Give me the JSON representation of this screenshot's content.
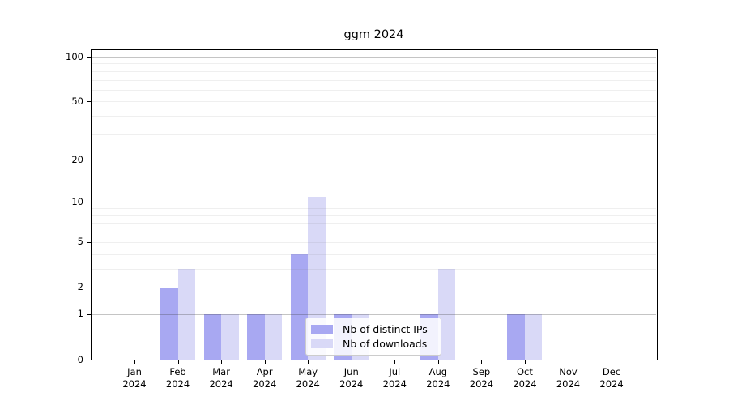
{
  "title": "ggm 2024",
  "chart_data": {
    "type": "bar",
    "title": "ggm 2024",
    "xlabel": "",
    "ylabel": "",
    "scale": "log1p",
    "grid": true,
    "legend_position": "lower center",
    "categories": [
      "Jan",
      "Feb",
      "Mar",
      "Apr",
      "May",
      "Jun",
      "Jul",
      "Aug",
      "Sep",
      "Oct",
      "Nov",
      "Dec"
    ],
    "year": "2024",
    "series": [
      {
        "name": "Nb of distinct IPs",
        "color": "#a8a8f2",
        "values": [
          0,
          2,
          1,
          1,
          4,
          1,
          0,
          1,
          0,
          1,
          0,
          0
        ]
      },
      {
        "name": "Nb of downloads",
        "color": "#d9d9f7",
        "values": [
          0,
          3,
          1,
          1,
          11,
          1,
          0,
          3,
          0,
          1,
          0,
          0
        ]
      }
    ],
    "y_ticks": [
      0,
      1,
      2,
      5,
      10,
      20,
      50,
      100
    ],
    "y_major_gridlines": [
      1,
      10,
      100
    ],
    "y_minor_gridlines": [
      2,
      3,
      4,
      5,
      6,
      7,
      8,
      9,
      20,
      30,
      40,
      50,
      60,
      70,
      80,
      90
    ],
    "ylim": [
      0,
      112
    ]
  },
  "colors": {
    "background": "#ffffff",
    "axis": "#000000",
    "major_grid": "#c7c7c7",
    "minor_grid": "#ebebeb",
    "legend_border": "#cccccc"
  }
}
